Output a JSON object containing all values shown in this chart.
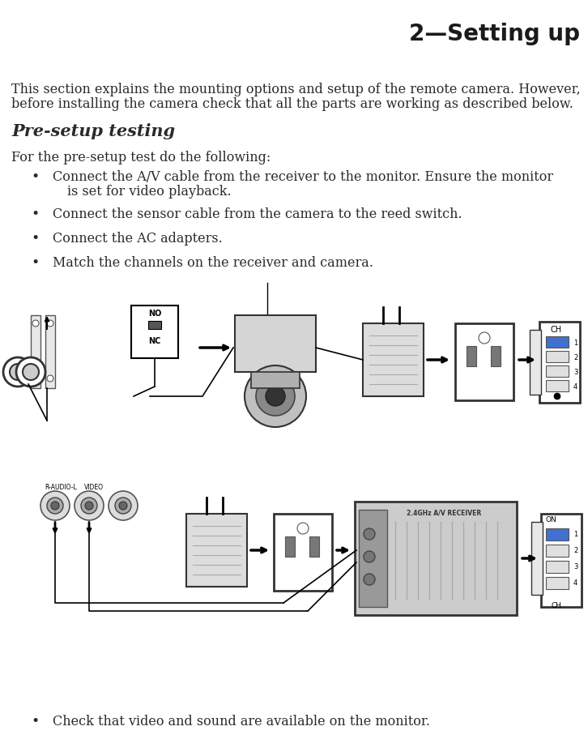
{
  "title": "2—Setting up",
  "title_fontsize": 20,
  "title_color": "#1a1a1a",
  "body_color": "#2a2a2a",
  "background_color": "#ffffff",
  "intro_text_line1": "This section explains the mounting options and setup of the remote camera. However,",
  "intro_text_line2": "before installing the camera check that all the parts are working as described below.",
  "section_title": "Pre-setup testing",
  "section_subtitle": "For the pre-setup test do the following:",
  "bullet1a": "Connect the A/V cable from the receiver to the monitor. Ensure the monitor",
  "bullet1b": "is set for video playback.",
  "bullet2": "Connect the sensor cable from the camera to the reed switch.",
  "bullet3": "Connect the AC adapters.",
  "bullet4": "Match the channels on the receiver and camera.",
  "last_bullet": "Check that video and sound are available on the monitor.",
  "body_fontsize": 11.5,
  "section_title_fontsize": 15
}
